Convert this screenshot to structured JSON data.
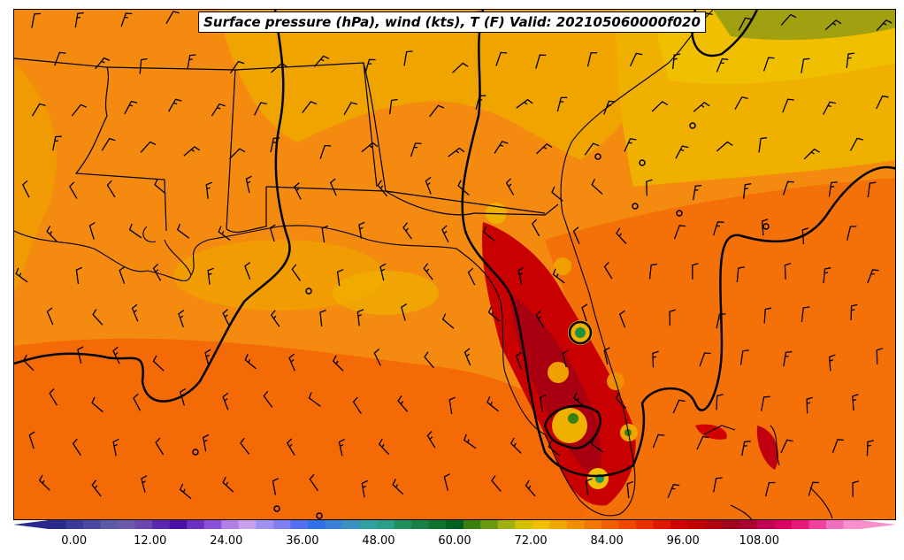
{
  "title": "Surface pressure (hPa), wind (kts), T (F) Valid: 202105060000f020",
  "colorbar": {
    "ticks": [
      "0.00",
      "12.00",
      "24.00",
      "36.00",
      "48.00",
      "60.00",
      "72.00",
      "84.00",
      "96.00",
      "108.00"
    ],
    "range": [
      -4,
      124
    ],
    "extend": "both",
    "colors": [
      "#2a2a8c",
      "#3a3a98",
      "#4a4aa0",
      "#5a5aa6",
      "#6a5aac",
      "#6a46b0",
      "#5a28b0",
      "#4a10a8",
      "#6a30c0",
      "#8a50d8",
      "#b080e8",
      "#c8a0f0",
      "#a090f0",
      "#8080f0",
      "#5070f0",
      "#3070e8",
      "#3a80d8",
      "#3a90c0",
      "#30a0a0",
      "#28a088",
      "#209060",
      "#188048",
      "#107030",
      "#006020",
      "#3a8010",
      "#6a9a10",
      "#a0b010",
      "#d0c000",
      "#f0c000",
      "#f0a800",
      "#f09000",
      "#f07800",
      "#f06000",
      "#f04800",
      "#e83000",
      "#e01800",
      "#d00000",
      "#c00000",
      "#b00010",
      "#a00020",
      "#a80030",
      "#c00050",
      "#d80060",
      "#e81878",
      "#f040a0",
      "#f070c0",
      "#f890d0"
    ]
  },
  "map": {
    "background": "#f47a0a",
    "legend_note": ""
  }
}
